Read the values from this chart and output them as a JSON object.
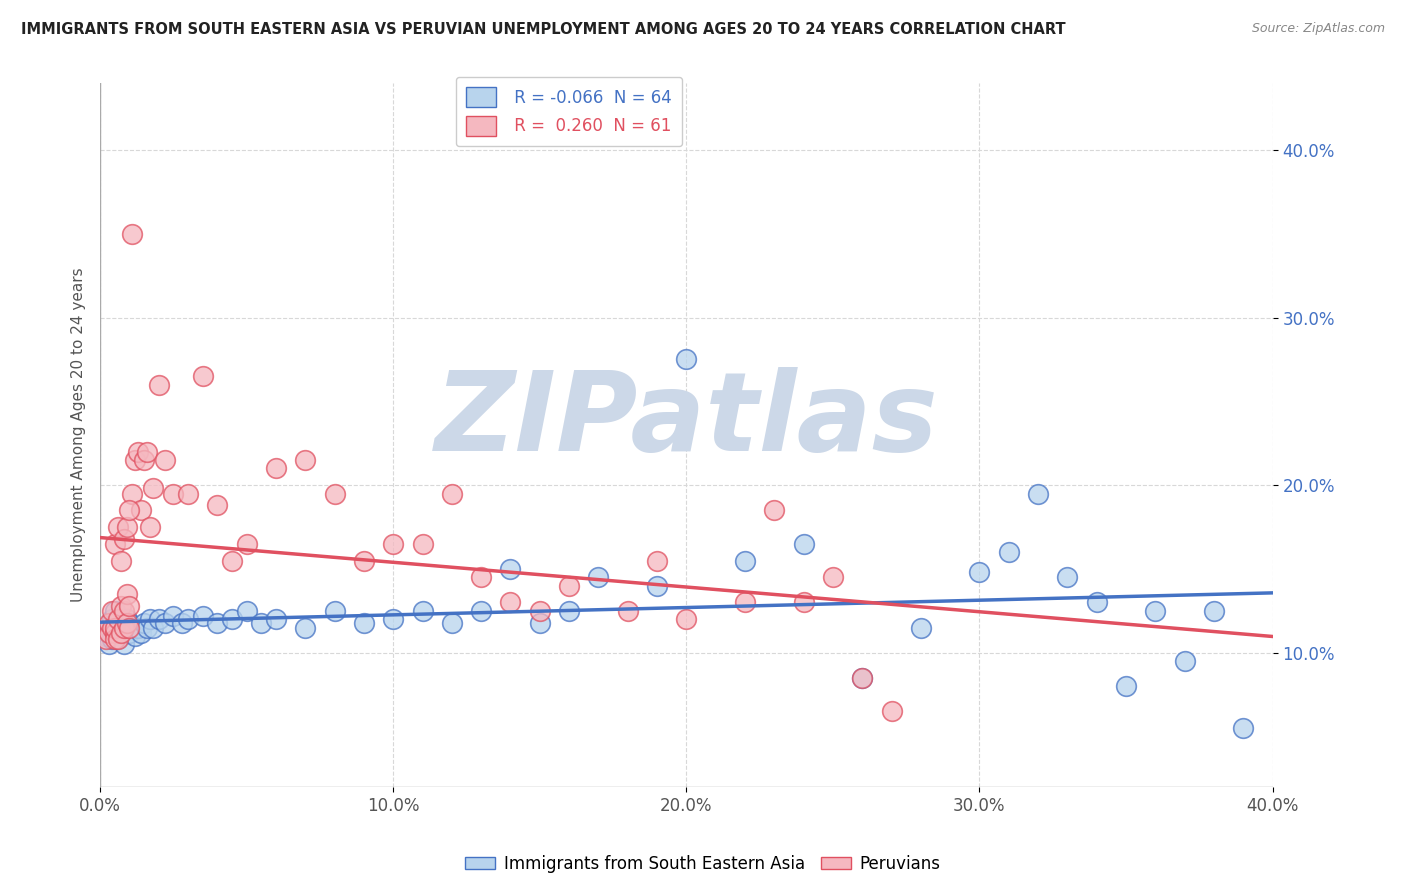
{
  "title": "IMMIGRANTS FROM SOUTH EASTERN ASIA VS PERUVIAN UNEMPLOYMENT AMONG AGES 20 TO 24 YEARS CORRELATION CHART",
  "source": "Source: ZipAtlas.com",
  "ylabel": "Unemployment Among Ages 20 to 24 years",
  "legend_label1": "Immigrants from South Eastern Asia",
  "legend_label2": "Peruvians",
  "R1": -0.066,
  "N1": 64,
  "R2": 0.26,
  "N2": 61,
  "color1": "#b8d4ed",
  "color2": "#f5b8c0",
  "trendline1_color": "#4472c4",
  "trendline2_color": "#e05060",
  "trendline2_dashed_color": "#e0a0a8",
  "xlim": [
    0.0,
    0.4
  ],
  "ylim": [
    0.02,
    0.44
  ],
  "xticks": [
    0.0,
    0.1,
    0.2,
    0.3,
    0.4
  ],
  "yticks_right": [
    0.1,
    0.2,
    0.3,
    0.4
  ],
  "background_color": "#ffffff",
  "grid_color": "#d8d8d8",
  "watermark": "ZIPatlas",
  "watermark_color": "#ccd8e8",
  "blue_scatter_x": [
    0.002,
    0.003,
    0.003,
    0.004,
    0.004,
    0.005,
    0.005,
    0.005,
    0.006,
    0.006,
    0.007,
    0.007,
    0.008,
    0.008,
    0.009,
    0.009,
    0.01,
    0.01,
    0.011,
    0.012,
    0.013,
    0.014,
    0.015,
    0.016,
    0.017,
    0.018,
    0.02,
    0.022,
    0.025,
    0.028,
    0.03,
    0.035,
    0.04,
    0.045,
    0.05,
    0.055,
    0.06,
    0.07,
    0.08,
    0.09,
    0.1,
    0.11,
    0.12,
    0.13,
    0.14,
    0.15,
    0.16,
    0.17,
    0.19,
    0.2,
    0.22,
    0.24,
    0.26,
    0.28,
    0.3,
    0.31,
    0.32,
    0.33,
    0.34,
    0.35,
    0.36,
    0.37,
    0.38,
    0.39
  ],
  "blue_scatter_y": [
    0.11,
    0.115,
    0.105,
    0.12,
    0.108,
    0.112,
    0.118,
    0.125,
    0.108,
    0.115,
    0.11,
    0.118,
    0.112,
    0.105,
    0.115,
    0.12,
    0.112,
    0.118,
    0.115,
    0.11,
    0.115,
    0.112,
    0.118,
    0.115,
    0.12,
    0.115,
    0.12,
    0.118,
    0.122,
    0.118,
    0.12,
    0.122,
    0.118,
    0.12,
    0.125,
    0.118,
    0.12,
    0.115,
    0.125,
    0.118,
    0.12,
    0.125,
    0.118,
    0.125,
    0.15,
    0.118,
    0.125,
    0.145,
    0.14,
    0.275,
    0.155,
    0.165,
    0.085,
    0.115,
    0.148,
    0.16,
    0.195,
    0.145,
    0.13,
    0.08,
    0.125,
    0.095,
    0.125,
    0.055
  ],
  "pink_scatter_x": [
    0.002,
    0.003,
    0.003,
    0.004,
    0.004,
    0.005,
    0.005,
    0.005,
    0.006,
    0.006,
    0.007,
    0.007,
    0.008,
    0.008,
    0.009,
    0.009,
    0.01,
    0.01,
    0.011,
    0.012,
    0.013,
    0.014,
    0.015,
    0.016,
    0.017,
    0.018,
    0.02,
    0.022,
    0.025,
    0.03,
    0.035,
    0.04,
    0.045,
    0.05,
    0.06,
    0.07,
    0.08,
    0.09,
    0.1,
    0.11,
    0.12,
    0.13,
    0.14,
    0.15,
    0.16,
    0.18,
    0.19,
    0.2,
    0.22,
    0.23,
    0.24,
    0.25,
    0.26,
    0.27,
    0.005,
    0.006,
    0.007,
    0.008,
    0.009,
    0.01,
    0.011
  ],
  "pink_scatter_y": [
    0.108,
    0.112,
    0.118,
    0.115,
    0.125,
    0.112,
    0.108,
    0.115,
    0.12,
    0.108,
    0.112,
    0.128,
    0.115,
    0.125,
    0.118,
    0.135,
    0.115,
    0.128,
    0.195,
    0.215,
    0.22,
    0.185,
    0.215,
    0.22,
    0.175,
    0.198,
    0.26,
    0.215,
    0.195,
    0.195,
    0.265,
    0.188,
    0.155,
    0.165,
    0.21,
    0.215,
    0.195,
    0.155,
    0.165,
    0.165,
    0.195,
    0.145,
    0.13,
    0.125,
    0.14,
    0.125,
    0.155,
    0.12,
    0.13,
    0.185,
    0.13,
    0.145,
    0.085,
    0.065,
    0.165,
    0.175,
    0.155,
    0.168,
    0.175,
    0.185,
    0.35
  ]
}
